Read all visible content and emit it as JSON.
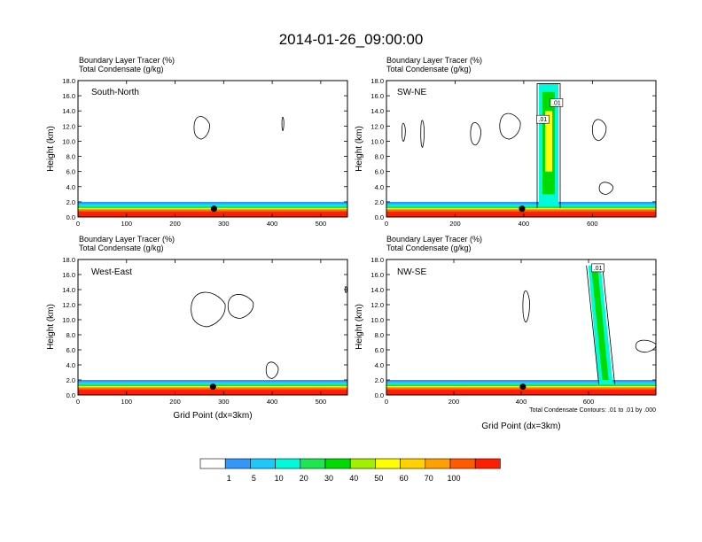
{
  "figure": {
    "title": "2014-01-26_09:00:00",
    "ylabel": "Height (km)",
    "xlabel": "Grid Point (dx=3km)",
    "contour_note": "Total Condensate Contours: .01 to .01 by .000",
    "colorbar": {
      "ticks": [
        "1",
        "5",
        "10",
        "20",
        "30",
        "40",
        "50",
        "60",
        "70",
        "100"
      ],
      "colors": [
        "#ffffff",
        "#3296fa",
        "#1ec8fa",
        "#00fadc",
        "#1ee650",
        "#00dc00",
        "#a0f000",
        "#ffff00",
        "#ffd200",
        "#ffa000",
        "#ff5a00",
        "#ff1e00"
      ]
    }
  },
  "chart_data": [
    {
      "type": "heatmap",
      "title": "Boundary Layer Tracer   (%)",
      "subtitle": "Total Condensate   (g/kg)",
      "panel_label": "South-North",
      "xlim": [
        0,
        555
      ],
      "ylim": [
        0,
        18
      ],
      "x_ticks": [
        "0",
        "100",
        "200",
        "300",
        "400",
        "500"
      ],
      "y_ticks": [
        "0.0",
        "2.0",
        "4.0",
        "6.0",
        "8.0",
        "10.0",
        "12.0",
        "14.0",
        "16.0",
        "18.0"
      ],
      "marker_point": {
        "x": 280,
        "y": 1.1
      },
      "cloud_contours": [
        {
          "cx": 255,
          "cy": 11.8,
          "w": 32,
          "h": 3.0
        },
        {
          "cx": 422,
          "cy": 12.3,
          "w": 4,
          "h": 1.8
        }
      ]
    },
    {
      "type": "heatmap",
      "title": "Boundary Layer Tracer   (%)",
      "subtitle": "Total Condensate   (g/kg)",
      "panel_label": "SW-NE",
      "xlim": [
        0,
        785
      ],
      "ylim": [
        0,
        18
      ],
      "x_ticks": [
        "0",
        "200",
        "400",
        "600"
      ],
      "y_ticks": [
        "0.0",
        "2.0",
        "4.0",
        "6.0",
        "8.0",
        "10.0",
        "12.0",
        "14.0",
        "16.0",
        "18.0"
      ],
      "marker_point": {
        "x": 395,
        "y": 1.1
      },
      "contour_labels": [
        ".01",
        ".01"
      ],
      "cloud_contours": [
        {
          "cx": 50,
          "cy": 11.2,
          "w": 10,
          "h": 2.4
        },
        {
          "cx": 105,
          "cy": 11.0,
          "w": 10,
          "h": 3.6
        },
        {
          "cx": 260,
          "cy": 11.0,
          "w": 30,
          "h": 3.0
        },
        {
          "cx": 360,
          "cy": 12.0,
          "w": 60,
          "h": 3.4
        },
        {
          "cx": 620,
          "cy": 11.5,
          "w": 40,
          "h": 2.8
        },
        {
          "cx": 640,
          "cy": 3.8,
          "w": 40,
          "h": 1.6
        }
      ]
    },
    {
      "type": "heatmap",
      "title": "Boundary Layer Tracer   (%)",
      "subtitle": "Total Condensate   (g/kg)",
      "panel_label": "West-East",
      "xlim": [
        0,
        555
      ],
      "ylim": [
        0,
        18
      ],
      "x_ticks": [
        "0",
        "100",
        "200",
        "300",
        "400",
        "500"
      ],
      "y_ticks": [
        "0.0",
        "2.0",
        "4.0",
        "6.0",
        "8.0",
        "10.0",
        "12.0",
        "14.0",
        "16.0",
        "18.0"
      ],
      "marker_point": {
        "x": 278,
        "y": 1.1
      },
      "cloud_contours": [
        {
          "cx": 268,
          "cy": 11.4,
          "w": 70,
          "h": 4.6
        },
        {
          "cx": 335,
          "cy": 11.8,
          "w": 52,
          "h": 3.2
        },
        {
          "cx": 552,
          "cy": 14.0,
          "w": 4,
          "h": 0.8
        },
        {
          "cx": 400,
          "cy": 3.3,
          "w": 25,
          "h": 2.2
        }
      ]
    },
    {
      "type": "heatmap",
      "title": "Boundary Layer Tracer   (%)",
      "subtitle": "Total Condensate   (g/kg)",
      "panel_label": "NW-SE",
      "xlim": [
        0,
        800
      ],
      "ylim": [
        0,
        18
      ],
      "x_ticks": [
        "0",
        "200",
        "400",
        "600"
      ],
      "y_ticks": [
        "0.0",
        "2.0",
        "4.0",
        "6.0",
        "8.0",
        "10.0",
        "12.0",
        "14.0",
        "16.0",
        "18.0"
      ],
      "marker_point": {
        "x": 405,
        "y": 1.1
      },
      "contour_labels": [
        ".01"
      ],
      "cloud_contours": [
        {
          "cx": 415,
          "cy": 11.8,
          "w": 20,
          "h": 4.2
        },
        {
          "cx": 770,
          "cy": 6.5,
          "w": 60,
          "h": 1.6
        }
      ]
    }
  ]
}
